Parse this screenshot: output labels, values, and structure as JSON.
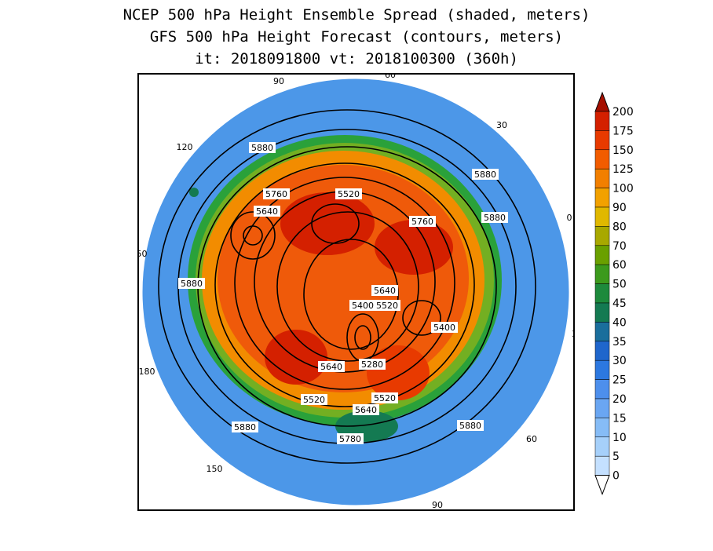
{
  "title": {
    "line1": "NCEP 500 hPa Height Ensemble Spread (shaded, meters)",
    "line2": "GFS 500 hPa Height Forecast (contours, meters)",
    "line3": "it: 2018091800      vt: 2018100300 (360h)"
  },
  "map": {
    "projection": "polar-stereographic",
    "hemisphere": "northern",
    "longitude_labels": [
      "60",
      "30",
      "0",
      "30",
      "60",
      "90",
      "120",
      "150",
      "180",
      "150",
      "120",
      "90"
    ],
    "contour_labels": [
      "5880",
      "5760",
      "5520",
      "5640",
      "5760",
      "5880",
      "5880",
      "5880",
      "5640",
      "5400",
      "5520",
      "5400",
      "5640",
      "5280",
      "5520",
      "5640",
      "5520",
      "5880",
      "5780",
      "5880"
    ],
    "colors": {
      "ocean_low": "#3f8fe0",
      "mid": "#2aa13a",
      "high": "#e8360e",
      "contour": "#000000",
      "coast": "#ffffff"
    }
  },
  "colorbar": {
    "ticks": [
      "200",
      "175",
      "150",
      "125",
      "100",
      "90",
      "80",
      "70",
      "60",
      "50",
      "45",
      "40",
      "35",
      "30",
      "25",
      "20",
      "15",
      "10",
      "5",
      "0"
    ],
    "colors": [
      "#a50f00",
      "#d42000",
      "#e83a00",
      "#f25c00",
      "#f27f00",
      "#f2a100",
      "#e0b800",
      "#a8a800",
      "#6aa000",
      "#3c9a1c",
      "#1d8a3c",
      "#147a52",
      "#1a6e9c",
      "#1f66cc",
      "#2c78e0",
      "#4d8fec",
      "#6aa6f2",
      "#86bcf6",
      "#a6d0fa",
      "#c4e0ff"
    ]
  }
}
